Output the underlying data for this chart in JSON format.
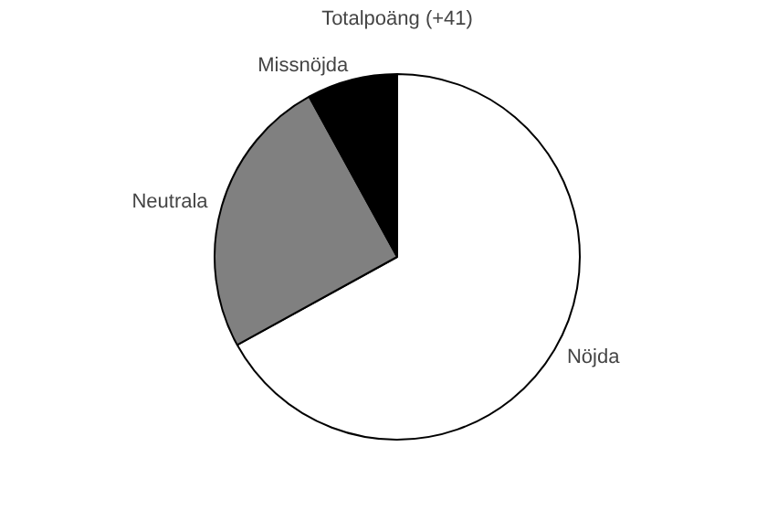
{
  "chart_data": {
    "type": "pie",
    "title": "Totalpoäng (+41)",
    "categories": [
      "Nöjda",
      "Neutrala",
      "Missnöjda"
    ],
    "values": [
      67,
      25,
      8
    ],
    "colors": [
      "#ffffff",
      "#808080",
      "#000000"
    ]
  }
}
